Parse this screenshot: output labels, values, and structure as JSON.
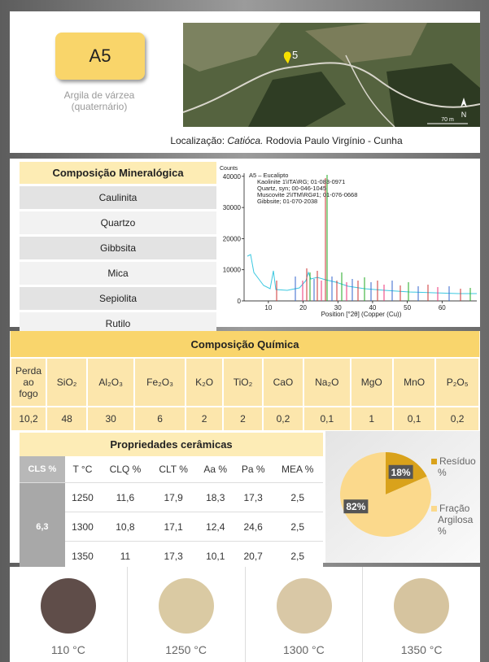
{
  "header": {
    "sample_id": "A5",
    "description_line1": "Argila de várzea",
    "description_line2": "(quaternário)",
    "map_marker": "5",
    "map_scale": "70 m",
    "map_north": "N",
    "location_label": "Localização:",
    "location_place": "Catióca.",
    "location_rest": "Rodovia Paulo Virgínio - Cunha"
  },
  "mineralogy": {
    "title": "Composição Mineralógica",
    "minerals": [
      "Caulinita",
      "Quartzo",
      "Gibbsita",
      "Mica",
      "Sepiolita",
      "Rutilo"
    ]
  },
  "xrd": {
    "y_axis_label": "Counts",
    "x_axis_label": "Position [°2θ] (Copper (Cu))",
    "xlim": [
      3,
      70
    ],
    "ylim": [
      0,
      41000
    ],
    "xticks": [
      10,
      20,
      30,
      40,
      50,
      60
    ],
    "yticks": [
      0,
      10000,
      20000,
      30000,
      40000
    ],
    "legend": [
      "A5 – Eucalipto",
      "Kaolinite 1\\ITA\\RG; 01-083-0971",
      "Quartz, syn; 00-046-1045",
      "Muscovite 2\\ITM\\RG#1; 01-076-0668",
      "Gibbsite; 01-070-2038"
    ]
  },
  "chemistry": {
    "title": "Composição Química",
    "columns": [
      "Perda ao fogo",
      "SiO₂",
      "Al₂O₃",
      "Fe₂O₃",
      "K₂O",
      "TiO₂",
      "CaO",
      "Na₂O",
      "MgO",
      "MnO",
      "P₂O₅"
    ],
    "values": [
      "10,2",
      "48",
      "30",
      "6",
      "2",
      "2",
      "0,2",
      "0,1",
      "1",
      "0,1",
      "0,2"
    ]
  },
  "ceramics": {
    "title": "Propriedades cerâmicas",
    "columns": [
      "CLS %",
      "T °C",
      "CLQ %",
      "CLT %",
      "Aa %",
      "Pa %",
      "MEA %"
    ],
    "cls": "6,3",
    "rows": [
      [
        "1250",
        "11,6",
        "17,9",
        "18,3",
        "17,3",
        "2,5"
      ],
      [
        "1300",
        "10,8",
        "17,1",
        "12,4",
        "24,6",
        "2,5"
      ],
      [
        "1350",
        "11",
        "17,3",
        "10,1",
        "20,7",
        "2,5"
      ]
    ]
  },
  "composition_pie": {
    "type": "pie",
    "values": [
      18,
      82
    ],
    "value_labels": [
      "18%",
      "82%"
    ],
    "names": [
      "Resíduo %",
      "Fração Argilosa %"
    ],
    "colors": [
      "#d9a21b",
      "#fbd98c"
    ]
  },
  "samples": [
    {
      "label": "110 °C",
      "color": "#5f4d49"
    },
    {
      "label": "1250 °C",
      "color": "#dacaa3"
    },
    {
      "label": "1300 °C",
      "color": "#d9c8a6"
    },
    {
      "label": "1350 °C",
      "color": "#d6c49f"
    }
  ]
}
